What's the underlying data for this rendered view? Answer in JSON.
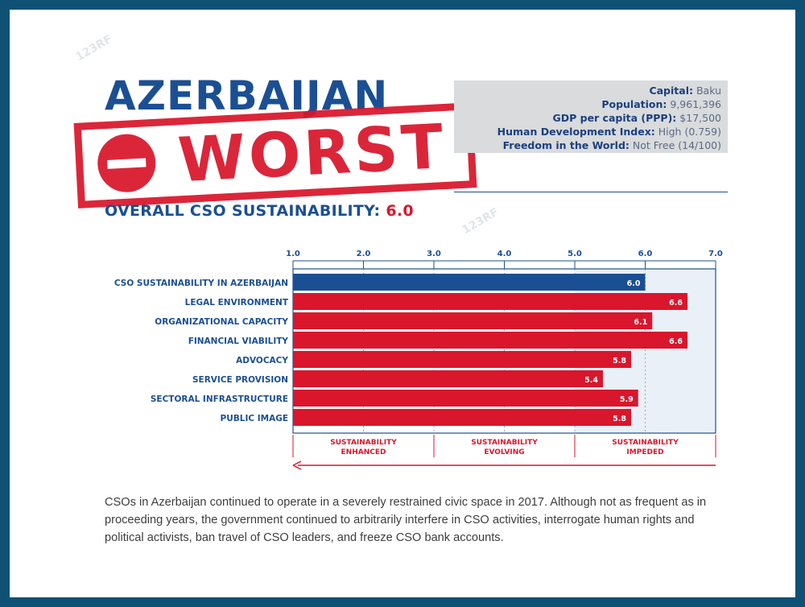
{
  "header": {
    "country": "AZERBAIJAN",
    "stamp_text": "WORST",
    "overall_label": "OVERALL CSO SUSTAINABILITY:",
    "overall_score": "6.0"
  },
  "infobox": {
    "capital_label": "Capital:",
    "capital_value": "Baku",
    "population_label": "Population:",
    "population_value": "9,961,396",
    "gdp_label": "GDP per capita (PPP):",
    "gdp_value": "$17,500",
    "hdi_label": "Human Development Index:",
    "hdi_value": "High (0.759)",
    "freedom_label": "Freedom in the World:",
    "freedom_value": "Not Free (14/100)"
  },
  "watermark": "123RF",
  "colors": {
    "frame": "#0e5175",
    "navy": "#1b4f93",
    "red": "#d9162c",
    "panel": "#e9f0f8"
  },
  "chart_data": {
    "type": "bar",
    "orientation": "horizontal",
    "xlim": [
      1.0,
      7.0
    ],
    "ticks": [
      "1.0",
      "2.0",
      "3.0",
      "4.0",
      "5.0",
      "6.0",
      "7.0"
    ],
    "categories": [
      "CSO SUSTAINABILITY IN AZERBAIJAN",
      "LEGAL ENVIRONMENT",
      "ORGANIZATIONAL CAPACITY",
      "FINANCIAL VIABILITY",
      "ADVOCACY",
      "SERVICE PROVISION",
      "SECTORAL INFRASTRUCTURE",
      "PUBLIC IMAGE"
    ],
    "values": [
      6.0,
      6.6,
      6.1,
      6.6,
      5.8,
      5.4,
      5.9,
      5.8
    ],
    "value_labels": [
      "6.0",
      "6.6",
      "6.1",
      "6.6",
      "5.8",
      "5.4",
      "5.9",
      "5.8"
    ],
    "bar_colors": [
      "#1b4f93",
      "#d9162c",
      "#d9162c",
      "#d9162c",
      "#d9162c",
      "#d9162c",
      "#d9162c",
      "#d9162c"
    ],
    "zones": [
      {
        "line1": "SUSTAINABILITY",
        "line2": "ENHANCED",
        "from": 1.0,
        "to": 3.0
      },
      {
        "line1": "SUSTAINABILITY",
        "line2": "EVOLVING",
        "from": 3.0,
        "to": 5.0
      },
      {
        "line1": "SUSTAINABILITY",
        "line2": "IMPEDED",
        "from": 5.0,
        "to": 7.0
      }
    ],
    "highlight_range": [
      5.0,
      7.0
    ],
    "grid": "dotted"
  },
  "description": "CSOs in Azerbaijan continued to operate in a severely restrained civic space in 2017. Although not as frequent as in proceeding years, the government continued to arbitrarily interfere in CSO activities, interrogate human rights and political activists, ban travel of CSO leaders, and freeze CSO bank accounts."
}
